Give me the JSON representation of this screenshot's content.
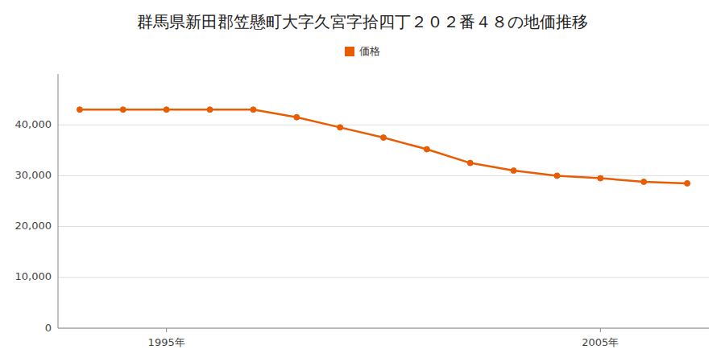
{
  "chart_data": {
    "type": "line",
    "title": "群馬県新田郡笠懸町大字久宮字拾四丁２０２番４８の地価推移",
    "x": [
      1993,
      1994,
      1995,
      1996,
      1997,
      1998,
      1999,
      2000,
      2001,
      2002,
      2003,
      2004,
      2005,
      2006,
      2007
    ],
    "series": [
      {
        "name": "価格",
        "color": "#e85d04",
        "marker": "circle",
        "values": [
          43000,
          43000,
          43000,
          43000,
          43000,
          41500,
          39500,
          37500,
          35200,
          32500,
          31000,
          30000,
          29500,
          28800,
          28500
        ]
      }
    ],
    "xlim": [
      1992.5,
      2007.5
    ],
    "xticks": [
      {
        "value": 1995,
        "label": "1995年"
      },
      {
        "value": 2005,
        "label": "2005年"
      }
    ],
    "ylim": [
      0,
      50000
    ],
    "yticks": [
      0,
      {
        "value": 10000,
        "label": "10,000"
      },
      {
        "value": 20000,
        "label": "20,000"
      },
      {
        "value": 30000,
        "label": "30,000"
      },
      {
        "value": 40000,
        "label": "40,000"
      }
    ],
    "grid": true,
    "legend": "top"
  }
}
